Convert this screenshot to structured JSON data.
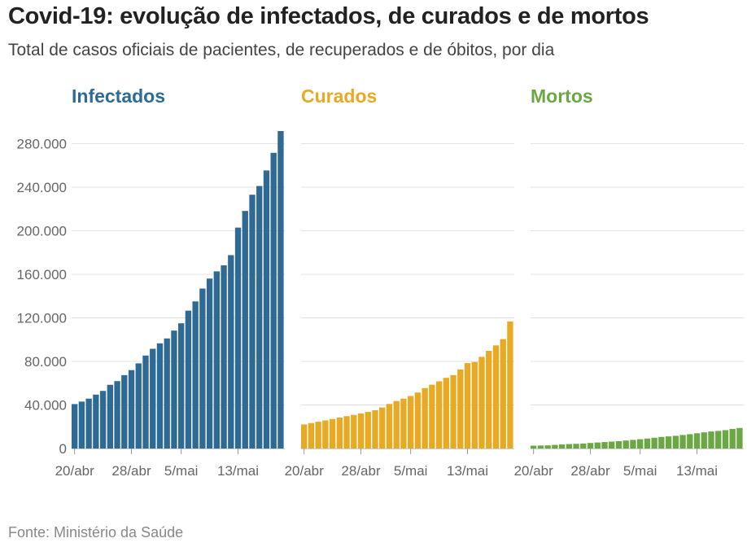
{
  "title": "Covid-19: evolução de infectados, de curados e de mortos",
  "subtitle": "Total de casos oficiais de pacientes, de recuperados e de óbitos, por dia",
  "source": "Fonte: Ministério da Saúde",
  "y_ticks": [
    "0",
    "40.000",
    "80.000",
    "120.000",
    "160.000",
    "200.000",
    "240.000",
    "280.000"
  ],
  "chart_data": [
    {
      "type": "bar",
      "title": "Infectados",
      "color": "#2e6a94",
      "x_tick_labels": [
        "20/abr",
        "28/abr",
        "5/mai",
        "13/mai"
      ],
      "x_tick_indices": [
        0,
        8,
        15,
        23
      ],
      "ylim": [
        0,
        290000
      ],
      "grid": true,
      "values": [
        40800,
        43100,
        45800,
        49500,
        52900,
        58500,
        61900,
        67400,
        72000,
        78200,
        85400,
        91600,
        96600,
        101100,
        108300,
        115000,
        126600,
        135100,
        146900,
        156100,
        162700,
        168300,
        177600,
        202900,
        218200,
        233100,
        241100,
        255400,
        271600,
        291600
      ]
    },
    {
      "type": "bar",
      "title": "Curados",
      "color": "#e8a923",
      "x_tick_labels": [
        "20/abr",
        "28/abr",
        "5/mai",
        "13/mai"
      ],
      "x_tick_indices": [
        0,
        8,
        15,
        23
      ],
      "ylim": [
        0,
        290000
      ],
      "grid": true,
      "values": [
        22100,
        23400,
        24600,
        25800,
        27100,
        28400,
        29700,
        30900,
        32200,
        33600,
        35200,
        37700,
        40900,
        43600,
        45800,
        48200,
        51400,
        55500,
        58600,
        61700,
        64900,
        67400,
        72600,
        78400,
        79500,
        84200,
        89700,
        94700,
        100500,
        116700
      ]
    },
    {
      "type": "bar",
      "title": "Mortos",
      "color": "#6aa844",
      "x_tick_labels": [
        "20/abr",
        "28/abr",
        "5/mai",
        "13/mai"
      ],
      "x_tick_indices": [
        0,
        8,
        15,
        23
      ],
      "ylim": [
        0,
        290000
      ],
      "grid": true,
      "values": [
        2575,
        2741,
        2906,
        3313,
        3704,
        4057,
        4286,
        4603,
        5083,
        5513,
        5901,
        6329,
        6750,
        7321,
        7921,
        8536,
        9146,
        9897,
        10627,
        11123,
        11653,
        12400,
        13149,
        13993,
        14817,
        15633,
        16118,
        16853,
        17971,
        18859
      ]
    }
  ]
}
